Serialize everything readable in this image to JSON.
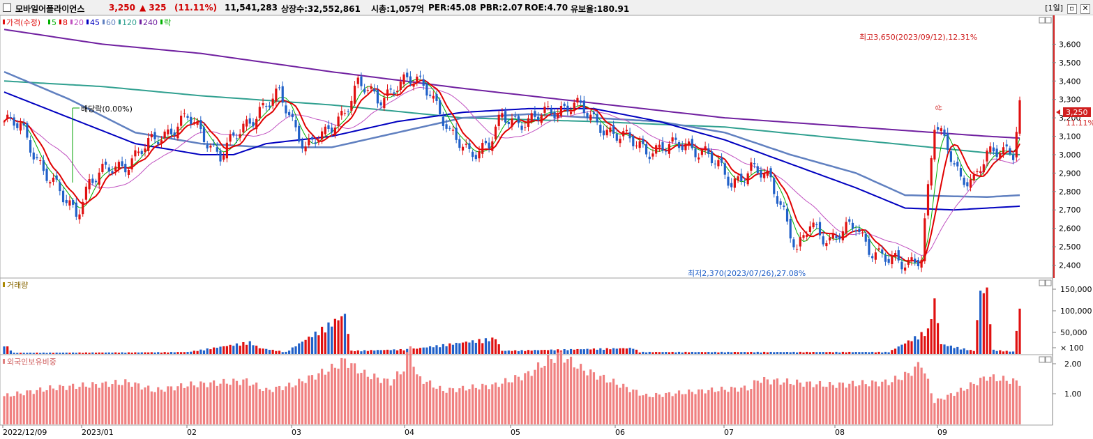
{
  "header": {
    "name": "모바일어플라이언스",
    "price": "3,250",
    "change": "▲ 325",
    "change_pct": "(11.11%)",
    "volume": "11,541,283",
    "shares": "상장수:32,552,861",
    "mcap": "시총:1,057억",
    "per": "PER:45.08",
    "pbr": "PBR:2.07",
    "roe": "ROE:4.70",
    "float": "유보율:180.91",
    "period": "[1일]",
    "close_btn": "✕",
    "min_btn": "▫"
  },
  "price_legend": [
    "가격(수정)",
    "5",
    "8",
    "20",
    "45",
    "60",
    "120",
    "240",
    "락"
  ],
  "volume_legend": "거래량",
  "foreign_legend": "외국인보유비중",
  "annotations": {
    "high": "최고3,650(2023/09/12),12.31%",
    "low": "최저2,370(2023/07/26),27.08%",
    "dividend": "배당락(0.00%)",
    "current_price": "3,250",
    "current_pct": "11.11%",
    "up_mark": "상"
  },
  "price_axis": [
    "3,600",
    "3,500",
    "3,400",
    "3,300",
    "3,200",
    "3,100",
    "3,000",
    "2,900",
    "2,800",
    "2,700",
    "2,600",
    "2,500",
    "2,400"
  ],
  "volume_axis": [
    "150,000",
    "100,000",
    "50,000",
    "× 100"
  ],
  "foreign_axis": [
    "2.00",
    "1.00"
  ],
  "x_axis": [
    "2022/12/09",
    "2023/01",
    "02",
    "03",
    "04",
    "05",
    "06",
    "07",
    "08",
    "09"
  ],
  "colors": {
    "up": "#e01010",
    "down": "#2060c8",
    "ma5": "#00b000",
    "ma8": "#e00000",
    "ma20": "#c050c0",
    "ma45": "#0000c0",
    "ma60": "#6080c0",
    "ma120": "#30a090",
    "ma240": "#7020a0",
    "foreign": "#f08080"
  },
  "chart_data": {
    "type": "candlestick",
    "ylim": [
      2330,
      3700
    ],
    "anchors_price": [
      [
        0,
        3180
      ],
      [
        5,
        3150
      ],
      [
        12,
        2920
      ],
      [
        18,
        2760
      ],
      [
        22,
        2690
      ],
      [
        26,
        2850
      ],
      [
        32,
        2920
      ],
      [
        38,
        2960
      ],
      [
        46,
        3080
      ],
      [
        56,
        3200
      ],
      [
        62,
        3080
      ],
      [
        66,
        3000
      ],
      [
        72,
        3120
      ],
      [
        78,
        3250
      ],
      [
        84,
        3320
      ],
      [
        88,
        3180
      ],
      [
        92,
        3050
      ],
      [
        98,
        3100
      ],
      [
        104,
        3250
      ],
      [
        108,
        3380
      ],
      [
        114,
        3300
      ],
      [
        120,
        3380
      ],
      [
        126,
        3400
      ],
      [
        130,
        3360
      ],
      [
        136,
        3100
      ],
      [
        142,
        3020
      ],
      [
        148,
        3050
      ],
      [
        152,
        3200
      ],
      [
        160,
        3180
      ],
      [
        168,
        3240
      ],
      [
        174,
        3280
      ],
      [
        180,
        3180
      ],
      [
        188,
        3100
      ],
      [
        196,
        3030
      ],
      [
        204,
        3040
      ],
      [
        208,
        3060
      ],
      [
        214,
        3010
      ],
      [
        222,
        2850
      ],
      [
        228,
        2920
      ],
      [
        234,
        2860
      ],
      [
        238,
        2700
      ],
      [
        242,
        2460
      ],
      [
        246,
        2620
      ],
      [
        252,
        2540
      ],
      [
        260,
        2610
      ],
      [
        264,
        2500
      ],
      [
        270,
        2420
      ],
      [
        274,
        2410
      ],
      [
        280,
        2450
      ],
      [
        284,
        3150
      ],
      [
        288,
        3050
      ],
      [
        292,
        2880
      ],
      [
        296,
        2840
      ],
      [
        300,
        3000
      ],
      [
        304,
        3050
      ],
      [
        308,
        3000
      ],
      [
        310,
        3250
      ]
    ],
    "anchors_vol": [
      [
        0,
        25
      ],
      [
        3,
        3
      ],
      [
        40,
        4
      ],
      [
        56,
        5
      ],
      [
        75,
        30
      ],
      [
        78,
        15
      ],
      [
        86,
        5
      ],
      [
        104,
        100
      ],
      [
        106,
        8
      ],
      [
        124,
        12
      ],
      [
        150,
        40
      ],
      [
        152,
        8
      ],
      [
        192,
        15
      ],
      [
        194,
        5
      ],
      [
        270,
        5
      ],
      [
        282,
        60
      ],
      [
        284,
        135
      ],
      [
        286,
        25
      ],
      [
        290,
        18
      ],
      [
        296,
        8
      ],
      [
        298,
        160
      ],
      [
        300,
        160
      ],
      [
        302,
        10
      ],
      [
        308,
        6
      ],
      [
        310,
        115
      ]
    ],
    "anchors_foreign": [
      [
        0,
        1.0
      ],
      [
        15,
        1.3
      ],
      [
        38,
        1.5
      ],
      [
        46,
        1.2
      ],
      [
        56,
        1.4
      ],
      [
        74,
        1.55
      ],
      [
        80,
        1.2
      ],
      [
        88,
        1.4
      ],
      [
        100,
        2.0
      ],
      [
        104,
        2.3
      ],
      [
        110,
        1.8
      ],
      [
        118,
        1.5
      ],
      [
        122,
        2.0
      ],
      [
        124,
        2.8
      ],
      [
        126,
        1.7
      ],
      [
        134,
        1.2
      ],
      [
        150,
        1.4
      ],
      [
        160,
        1.8
      ],
      [
        166,
        2.3
      ],
      [
        170,
        2.5
      ],
      [
        176,
        2.0
      ],
      [
        188,
        1.4
      ],
      [
        196,
        1.0
      ],
      [
        214,
        1.2
      ],
      [
        228,
        1.3
      ],
      [
        230,
        1.6
      ],
      [
        240,
        1.5
      ],
      [
        252,
        1.4
      ],
      [
        270,
        1.5
      ],
      [
        276,
        1.8
      ],
      [
        280,
        2.2
      ],
      [
        284,
        0.8
      ],
      [
        292,
        1.2
      ],
      [
        300,
        1.7
      ],
      [
        310,
        1.5
      ]
    ],
    "ma240_anchors": [
      [
        0,
        3680
      ],
      [
        30,
        3600
      ],
      [
        60,
        3550
      ],
      [
        100,
        3450
      ],
      [
        140,
        3360
      ],
      [
        180,
        3280
      ],
      [
        220,
        3200
      ],
      [
        260,
        3150
      ],
      [
        300,
        3100
      ],
      [
        310,
        3090
      ]
    ],
    "ma120_anchors": [
      [
        0,
        3400
      ],
      [
        30,
        3370
      ],
      [
        60,
        3320
      ],
      [
        100,
        3270
      ],
      [
        140,
        3200
      ],
      [
        180,
        3180
      ],
      [
        220,
        3150
      ],
      [
        260,
        3080
      ],
      [
        300,
        3010
      ],
      [
        310,
        3000
      ]
    ],
    "ma60_anchors": [
      [
        0,
        3450
      ],
      [
        20,
        3300
      ],
      [
        40,
        3120
      ],
      [
        60,
        3060
      ],
      [
        80,
        3040
      ],
      [
        100,
        3040
      ],
      [
        120,
        3120
      ],
      [
        140,
        3200
      ],
      [
        160,
        3220
      ],
      [
        180,
        3200
      ],
      [
        200,
        3180
      ],
      [
        220,
        3120
      ],
      [
        240,
        3000
      ],
      [
        260,
        2900
      ],
      [
        275,
        2780
      ],
      [
        300,
        2770
      ],
      [
        310,
        2780
      ]
    ],
    "ma45_anchors": [
      [
        0,
        3340
      ],
      [
        20,
        3200
      ],
      [
        40,
        3060
      ],
      [
        60,
        3000
      ],
      [
        70,
        3000
      ],
      [
        80,
        3060
      ],
      [
        100,
        3100
      ],
      [
        120,
        3180
      ],
      [
        140,
        3230
      ],
      [
        160,
        3250
      ],
      [
        180,
        3250
      ],
      [
        200,
        3180
      ],
      [
        220,
        3080
      ],
      [
        240,
        2950
      ],
      [
        260,
        2820
      ],
      [
        275,
        2710
      ],
      [
        290,
        2700
      ],
      [
        300,
        2710
      ],
      [
        310,
        2720
      ]
    ]
  }
}
